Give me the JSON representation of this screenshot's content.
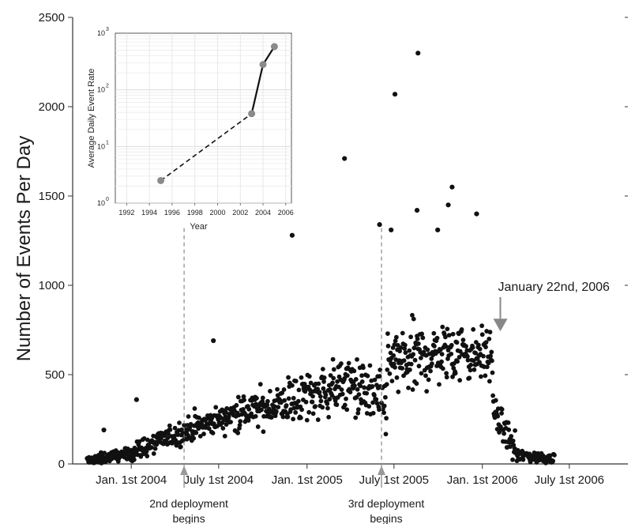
{
  "chart_data": [
    {
      "type": "scatter",
      "ylabel": "Number of Events Per Day",
      "ylim": [
        0,
        2500
      ],
      "yticks": [
        0,
        500,
        1000,
        1500,
        2000,
        2500
      ],
      "x_date_range": [
        "2003-09-01",
        "2006-10-31"
      ],
      "xtick_labels": [
        {
          "date": "2004-01-01",
          "label": "Jan. 1st 2004"
        },
        {
          "date": "2004-07-01",
          "label": "July 1st 2004"
        },
        {
          "date": "2005-01-01",
          "label": "Jan. 1st 2005"
        },
        {
          "date": "2005-07-01",
          "label": "July 1st 2005"
        },
        {
          "date": "2006-01-01",
          "label": "Jan. 1st 2006"
        },
        {
          "date": "2006-07-01",
          "label": "July 1st 2006"
        }
      ],
      "series_segments": [
        {
          "start": "2003-10-01",
          "end": "2003-12-31",
          "base_start": 15,
          "base_end": 60,
          "spread": 35
        },
        {
          "start": "2004-01-01",
          "end": "2004-03-31",
          "base_start": 60,
          "base_end": 160,
          "spread": 60
        },
        {
          "start": "2004-04-01",
          "end": "2004-07-31",
          "base_start": 160,
          "base_end": 280,
          "spread": 80
        },
        {
          "start": "2004-08-01",
          "end": "2004-10-31",
          "base_start": 280,
          "base_end": 330,
          "spread": 110
        },
        {
          "start": "2004-11-01",
          "end": "2005-03-31",
          "base_start": 330,
          "base_end": 450,
          "spread": 150
        },
        {
          "start": "2005-04-01",
          "end": "2005-06-15",
          "base_start": 450,
          "base_end": 330,
          "spread": 180
        },
        {
          "start": "2005-06-16",
          "end": "2005-11-30",
          "base_start": 550,
          "base_end": 650,
          "spread": 200
        },
        {
          "start": "2005-12-01",
          "end": "2006-01-22",
          "base_start": 600,
          "base_end": 620,
          "spread": 150
        },
        {
          "start": "2006-01-23",
          "end": "2006-03-15",
          "base_start": 300,
          "base_end": 60,
          "spread": 90
        },
        {
          "start": "2006-03-16",
          "end": "2006-05-31",
          "base_start": 50,
          "base_end": 30,
          "spread": 35
        }
      ],
      "notable_points": [
        {
          "x": "2004-01-12",
          "y": 360
        },
        {
          "x": "2003-11-05",
          "y": 190
        },
        {
          "x": "2004-06-20",
          "y": 690
        },
        {
          "x": "2004-12-01",
          "y": 1280
        },
        {
          "x": "2005-03-20",
          "y": 1710
        },
        {
          "x": "2005-06-01",
          "y": 1340
        },
        {
          "x": "2005-07-03",
          "y": 2070
        },
        {
          "x": "2005-08-20",
          "y": 2300
        },
        {
          "x": "2005-10-30",
          "y": 1550
        },
        {
          "x": "2005-10-22",
          "y": 1450
        },
        {
          "x": "2005-12-20",
          "y": 1400
        },
        {
          "x": "2005-08-18",
          "y": 1420
        },
        {
          "x": "2005-09-30",
          "y": 1310
        },
        {
          "x": "2005-06-25",
          "y": 1310
        }
      ],
      "annotations": [
        {
          "text_lines": [
            "2nd deployment",
            "begins"
          ],
          "x": "2004-04-20",
          "style": "dashed-line-up-arrow"
        },
        {
          "text_lines": [
            "3rd deployment",
            "begins"
          ],
          "x": "2005-06-05",
          "style": "dashed-line-up-arrow"
        },
        {
          "text_lines": [
            "January 22nd, 2006"
          ],
          "x": "2006-01-22",
          "arrow_to_y": 760,
          "style": "down-arrow"
        }
      ]
    },
    {
      "type": "line",
      "inset": true,
      "xlabel": "Year",
      "ylabel": "Average Daily Event Rate",
      "xlim": [
        1991,
        2006.5
      ],
      "xticks": [
        1992,
        1994,
        1996,
        1998,
        2000,
        2002,
        2004,
        2006
      ],
      "yscale": "log",
      "ylim": [
        1,
        1000
      ],
      "ytick_labels": [
        {
          "value": 1,
          "base": "10",
          "exp": "0"
        },
        {
          "value": 10,
          "base": "10",
          "exp": "1"
        },
        {
          "value": 100,
          "base": "10",
          "exp": "2"
        },
        {
          "value": 1000,
          "base": "10",
          "exp": "3"
        }
      ],
      "grid": true,
      "points": [
        {
          "x": 1995,
          "y": 2.5
        },
        {
          "x": 2003,
          "y": 38
        },
        {
          "x": 2004,
          "y": 280
        },
        {
          "x": 2005,
          "y": 580
        }
      ],
      "segments": [
        {
          "from": 0,
          "to": 1,
          "style": "dashed"
        },
        {
          "from": 1,
          "to": 2,
          "style": "solid"
        },
        {
          "from": 2,
          "to": 3,
          "style": "solid"
        }
      ]
    }
  ]
}
